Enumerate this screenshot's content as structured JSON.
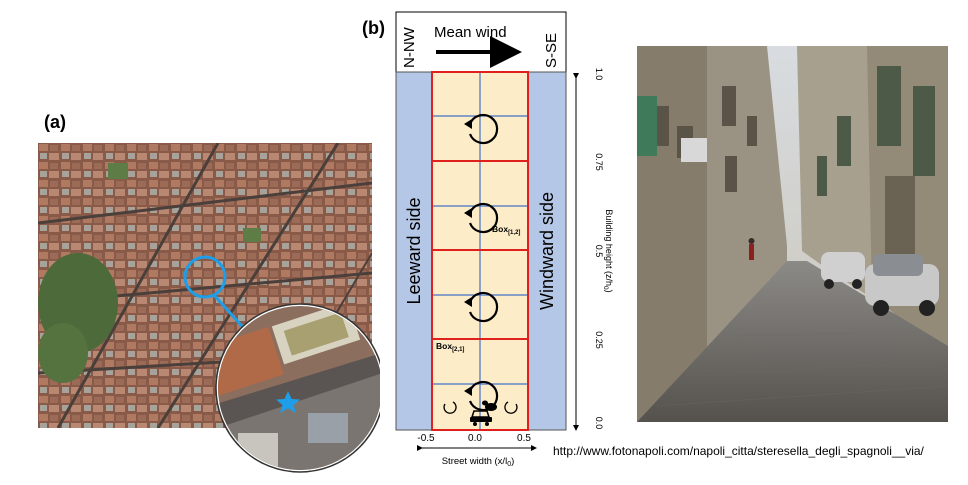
{
  "panel_a": {
    "label": "(a)"
  },
  "panel_b": {
    "label": "(b)",
    "left_direction": "N-NW",
    "right_direction": "S-SE",
    "wind_label": "Mean wind",
    "leeward_label": "Leeward side",
    "windward_label": "Windward side",
    "box_label_top": "Box",
    "box_label_top_sub": "[1,2]",
    "box_label_bottom": "Box",
    "box_label_bottom_sub": "[2,1]",
    "y_ticks": [
      "1.0",
      "0.75",
      "0.5",
      "0.25",
      "0.0"
    ],
    "x_ticks": [
      "-0.5",
      "0.0",
      "0.5"
    ],
    "x_axis_label": "Street width (x/l",
    "x_axis_label_sub": "0",
    "x_axis_label_end": ")",
    "y_axis_label": "Building height (z/h",
    "y_axis_label_sub": "0",
    "y_axis_label_end": ")"
  },
  "photo_url": "http://www.fotonapoli.com/napoli_citta/steresella_degli_spagnoli__via/",
  "colors": {
    "sidewall": "#b4c7e7",
    "canyon": "#fdecc8",
    "grid_red": "#e0201c",
    "grid_blue": "#4472c4",
    "star": "#1e9ee8"
  }
}
